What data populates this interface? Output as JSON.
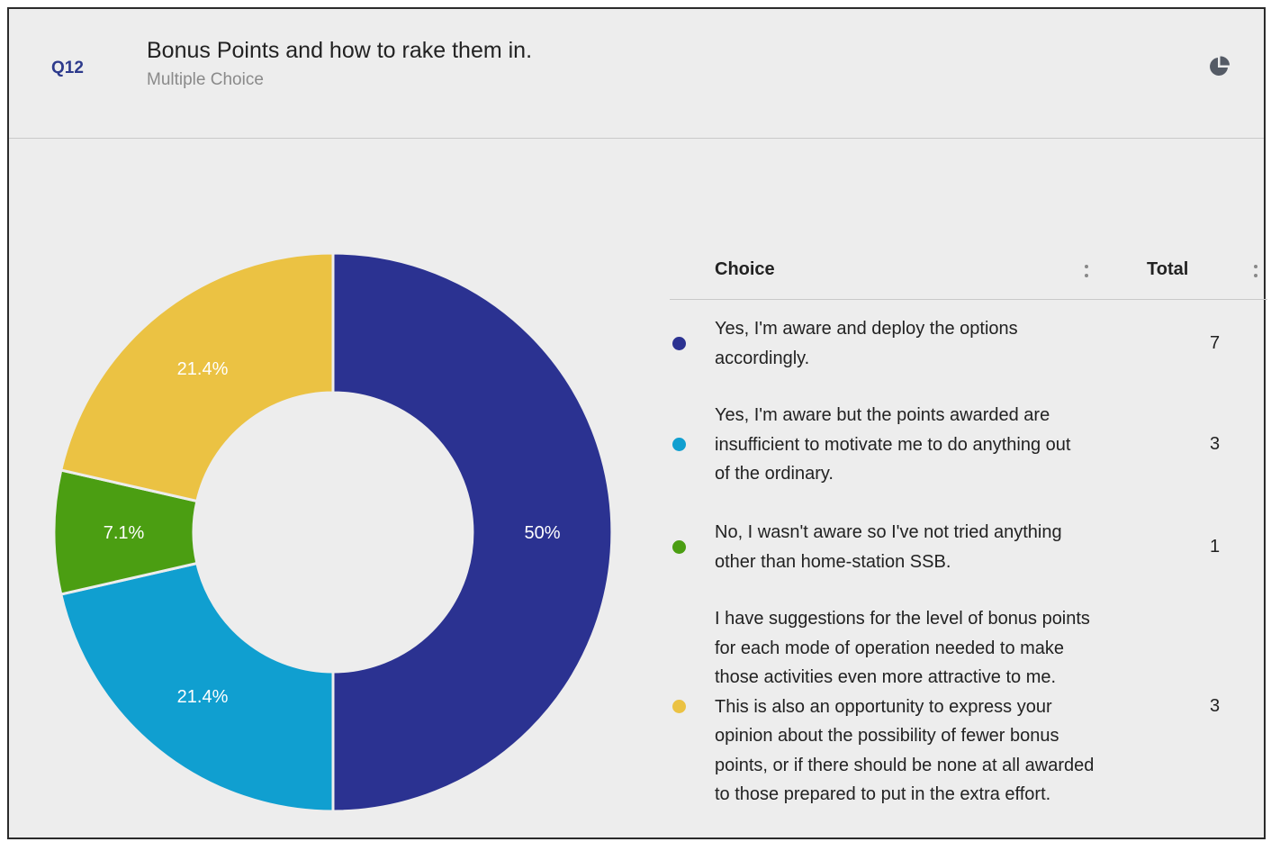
{
  "header": {
    "question_number": "Q12",
    "title": "Bonus Points and how to rake them in.",
    "subtitle": "Multiple Choice",
    "chart_toggle_icon": "pie-chart-icon"
  },
  "table": {
    "col_choice": "Choice",
    "col_total": "Total",
    "sort_icon": "sort-arrows-icon"
  },
  "chart_data": {
    "type": "pie",
    "donut": true,
    "legend": "table-right",
    "categories": [
      "Yes, I'm aware and deploy the options accordingly.",
      "Yes, I'm aware but the points awarded are insufficient to motivate me to do anything out of the ordinary.",
      "No, I wasn't aware so I've not tried anything other than home-station SSB.",
      "I have suggestions for the level of bonus points for each mode of operation needed to make those activities even more attractive to me. This is also an opportunity to express your opinion about the possibility of fewer bonus points, or if there should be none at all awarded to those prepared to put in the extra effort."
    ],
    "values": [
      7,
      3,
      1,
      3
    ],
    "percent_labels": [
      "50%",
      "21.4%",
      "7.1%",
      "21.4%"
    ],
    "colors": [
      "#2b3291",
      "#109fd0",
      "#4b9e12",
      "#ebc243"
    ]
  }
}
